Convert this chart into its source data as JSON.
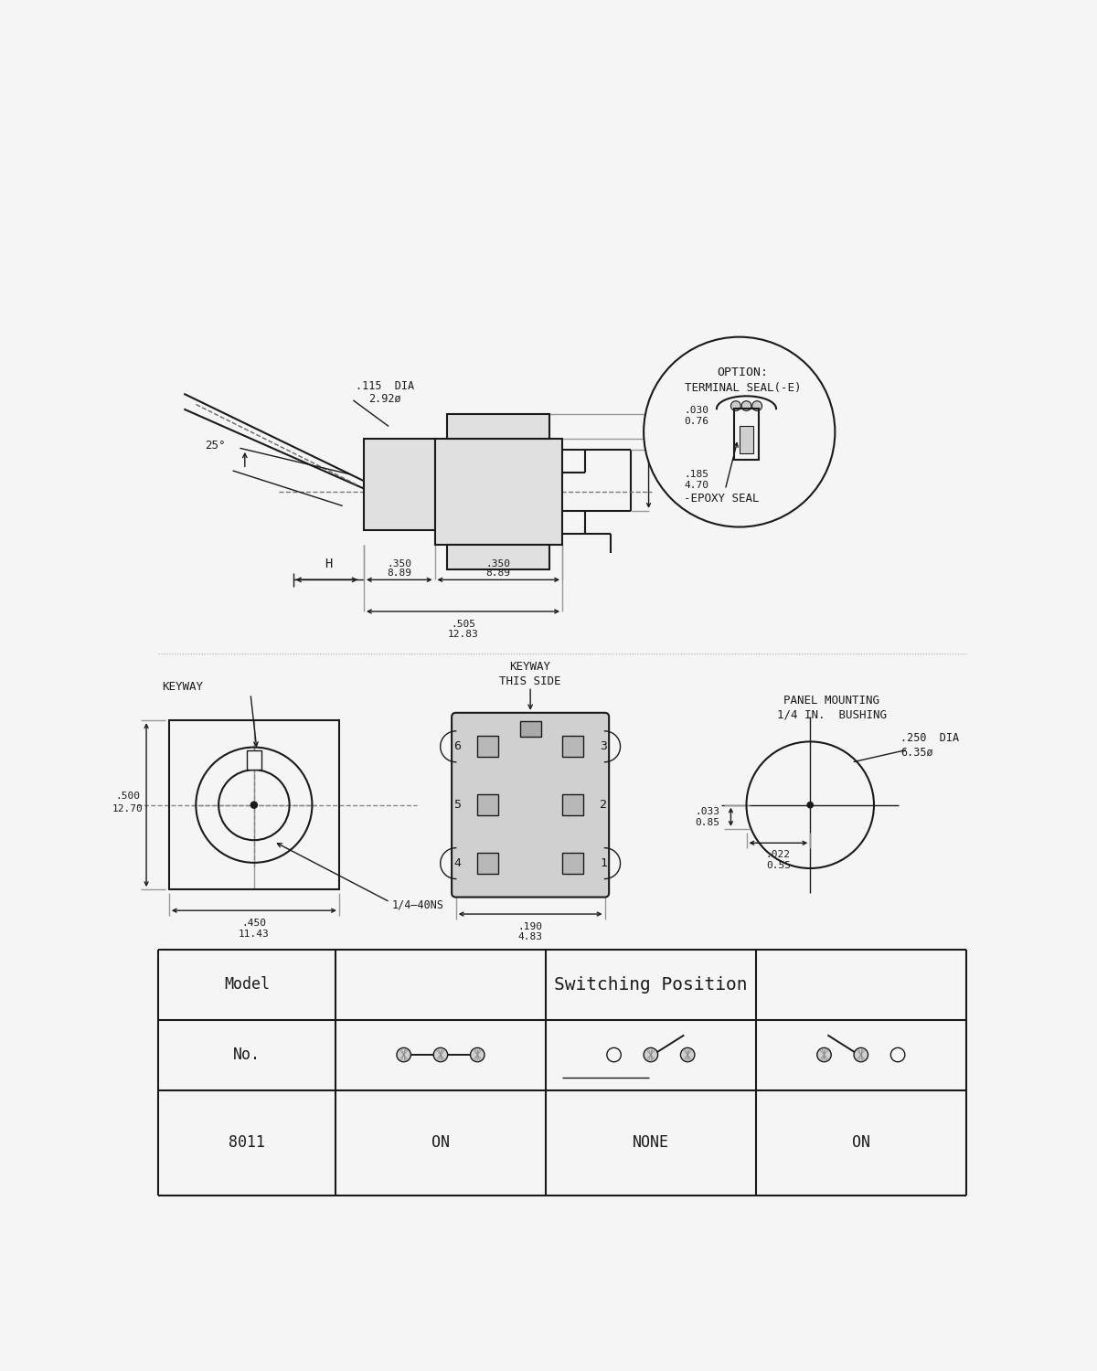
{
  "bg_color": "#f5f5f5",
  "line_color": "#1a1a1a",
  "lw_main": 1.5,
  "lw_thin": 1.0,
  "table_model": "Model",
  "table_switch": "Switching Position",
  "table_no": "No.",
  "table_8011": "8011",
  "table_on1": "ON",
  "table_none": "NONE",
  "table_on2": "ON",
  "option_line1": "OPTION:",
  "option_line2": "TERMINAL SEAL(-E)",
  "epoxy_label": "-EPOXY SEAL"
}
